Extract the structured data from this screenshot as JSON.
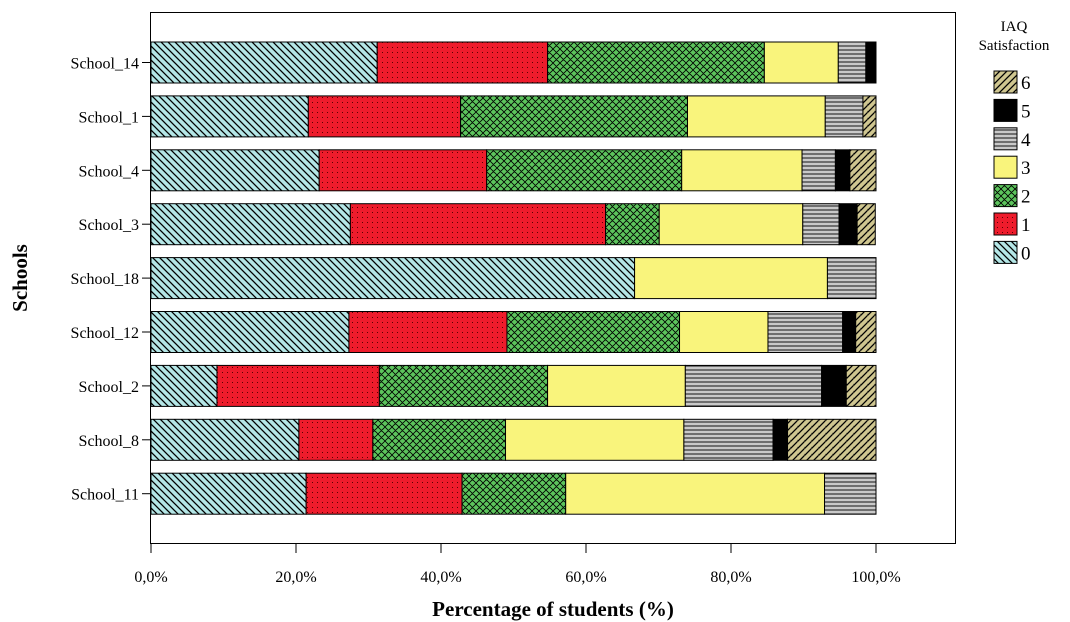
{
  "chart_data": {
    "type": "bar",
    "orientation": "horizontal",
    "stacked": true,
    "xlabel": "Percentage of students (%)",
    "ylabel": "Schools",
    "xlim": [
      0,
      100
    ],
    "x_tick_labels": [
      "0,0%",
      "20,0%",
      "40,0%",
      "60,0%",
      "80,0%",
      "100,0%"
    ],
    "grid": false,
    "legend": {
      "title_lines": [
        "IAQ",
        "Satisfaction"
      ],
      "position": "right",
      "order": [
        "6",
        "5",
        "4",
        "3",
        "2",
        "1",
        "0"
      ]
    },
    "categories": [
      "School_14",
      "School_1",
      "School_4",
      "School_3",
      "School_18",
      "School_12",
      "School_2",
      "School_8",
      "School_11"
    ],
    "series": [
      {
        "name": "0",
        "color": "#b4e6e6",
        "pattern": "diagonal-hatch",
        "values": [
          31.2,
          21.7,
          23.2,
          27.5,
          66.7,
          27.3,
          9.1,
          20.4,
          21.4
        ]
      },
      {
        "name": "1",
        "color": "#ee1c2c",
        "pattern": "dots",
        "values": [
          23.5,
          21.0,
          23.1,
          35.2,
          0,
          21.8,
          22.4,
          10.2,
          21.5
        ]
      },
      {
        "name": "2",
        "color": "#5cc45c",
        "pattern": "crosshatch",
        "values": [
          29.9,
          31.3,
          26.9,
          7.4,
          0,
          23.8,
          23.2,
          18.3,
          14.3
        ]
      },
      {
        "name": "3",
        "color": "#f9f47c",
        "pattern": "solid",
        "values": [
          10.2,
          19.0,
          16.6,
          19.8,
          26.6,
          12.2,
          19.0,
          24.6,
          35.7
        ]
      },
      {
        "name": "4",
        "color": "#c9c9c9",
        "pattern": "horizontal-lines",
        "values": [
          3.8,
          5.2,
          4.6,
          5.0,
          6.7,
          10.3,
          18.8,
          12.3,
          7.1
        ]
      },
      {
        "name": "5",
        "color": "#000000",
        "pattern": "solid",
        "values": [
          1.4,
          0,
          2.0,
          2.5,
          0,
          1.8,
          3.4,
          2.0,
          0
        ]
      },
      {
        "name": "6",
        "color": "#cfc690",
        "pattern": "diagonal-hatch",
        "values": [
          0,
          1.8,
          3.6,
          2.5,
          0,
          2.8,
          4.1,
          12.2,
          0
        ]
      }
    ]
  }
}
